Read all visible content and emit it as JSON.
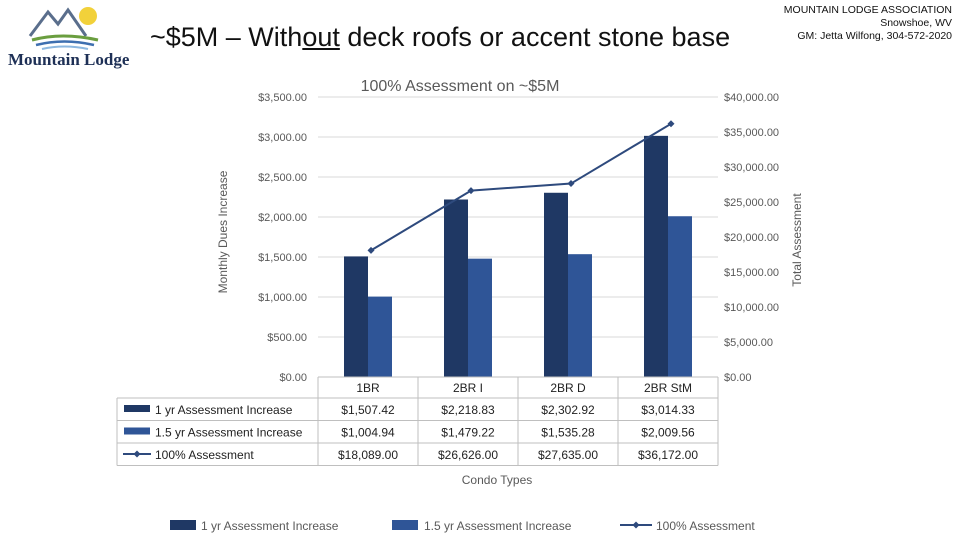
{
  "logo": {
    "text": "Mountain Lodge"
  },
  "title": {
    "pre": "~$5M – With",
    "underlined": "out",
    "post": " deck roofs or accent stone base"
  },
  "org": {
    "line1": "MOUNTAIN LODGE ASSOCIATION",
    "line2": "Snowshoe, WV",
    "line3": "GM: Jetta Wilfong, 304-572-2020"
  },
  "colors": {
    "dark": "#1f3864",
    "mid": "#2f5597",
    "line": "#2e4a7d",
    "grid": "#d9d9d9",
    "text": "#595959"
  },
  "chart_data": {
    "type": "bar",
    "title": "100% Assessment on ~$5M",
    "xlabel": "Condo Types",
    "ylabel": "Monthly Dues Increase",
    "y2label": "Total Assessment",
    "categories": [
      "1BR",
      "2BR I",
      "2BR D",
      "2BR StM"
    ],
    "ylim": [
      0,
      3500
    ],
    "y2lim": [
      0,
      40000
    ],
    "yticks": [
      "$0.00",
      "$500.00",
      "$1,000.00",
      "$1,500.00",
      "$2,000.00",
      "$2,500.00",
      "$3,000.00",
      "$3,500.00"
    ],
    "y2ticks": [
      "$0.00",
      "$5,000.00",
      "$10,000.00",
      "$15,000.00",
      "$20,000.00",
      "$25,000.00",
      "$30,000.00",
      "$35,000.00",
      "$40,000.00"
    ],
    "grid": true,
    "legend_position": "bottom",
    "series": [
      {
        "name": "1 yr Assessment Increase",
        "type": "bar",
        "axis": "left",
        "values": [
          1507.42,
          2218.83,
          2302.92,
          3014.33
        ],
        "labels": [
          "$1,507.42",
          "$2,218.83",
          "$2,302.92",
          "$3,014.33"
        ]
      },
      {
        "name": "1.5 yr Assessment Increase",
        "type": "bar",
        "axis": "left",
        "values": [
          1004.94,
          1479.22,
          1535.28,
          2009.56
        ],
        "labels": [
          "$1,004.94",
          "$1,479.22",
          "$1,535.28",
          "$2,009.56"
        ]
      },
      {
        "name": "100% Assessment",
        "type": "line",
        "axis": "right",
        "values": [
          18089.0,
          26626.0,
          27635.0,
          36172.0
        ],
        "labels": [
          "$18,089.00",
          "$26,626.00",
          "$27,635.00",
          "$36,172.00"
        ]
      }
    ]
  }
}
